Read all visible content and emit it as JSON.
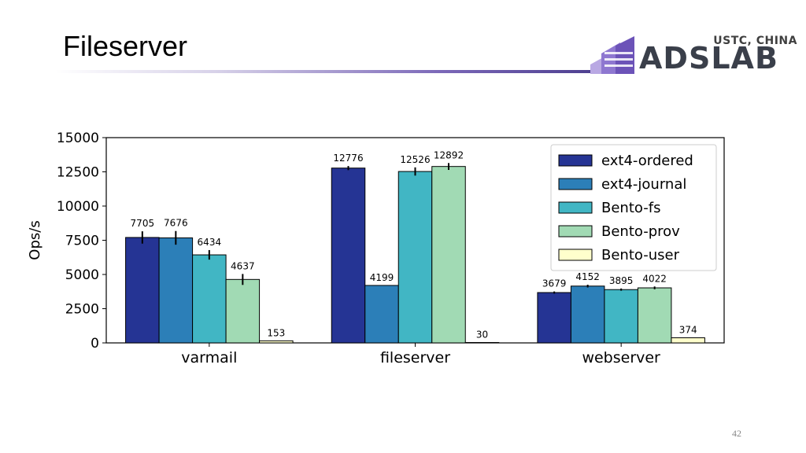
{
  "slide": {
    "title": "Fileserver",
    "page_number": "42"
  },
  "logo": {
    "small_text": "USTC, CHINA",
    "big_text": "ADSLAB",
    "colors": {
      "purple": "#7b62c4",
      "text": "#3a3f4a"
    }
  },
  "chart_data": {
    "type": "bar",
    "categories": [
      "varmail",
      "fileserver",
      "webserver"
    ],
    "series": [
      {
        "name": "ext4-ordered",
        "color": "#253494",
        "values": [
          7705,
          12776,
          3679
        ],
        "errors": [
          450,
          150,
          80
        ]
      },
      {
        "name": "ext4-journal",
        "color": "#2c7fb8",
        "values": [
          7676,
          4199,
          4152
        ],
        "errors": [
          500,
          0,
          100
        ]
      },
      {
        "name": "Bento-fs",
        "color": "#41b6c4",
        "values": [
          6434,
          12526,
          3895
        ],
        "errors": [
          350,
          300,
          80
        ]
      },
      {
        "name": "Bento-prov",
        "color": "#a1dab4",
        "values": [
          4637,
          12892,
          4022
        ],
        "errors": [
          400,
          250,
          100
        ]
      },
      {
        "name": "Bento-user",
        "color": "#ffffcc",
        "values": [
          153,
          30,
          374
        ],
        "errors": [
          0,
          0,
          0
        ]
      }
    ],
    "ylabel": "Ops/s",
    "xlabel": "",
    "ylim": [
      0,
      15000
    ],
    "yticks": [
      0,
      2500,
      5000,
      7500,
      10000,
      12500,
      15000
    ],
    "legend_position": "top-right",
    "grid": false
  }
}
